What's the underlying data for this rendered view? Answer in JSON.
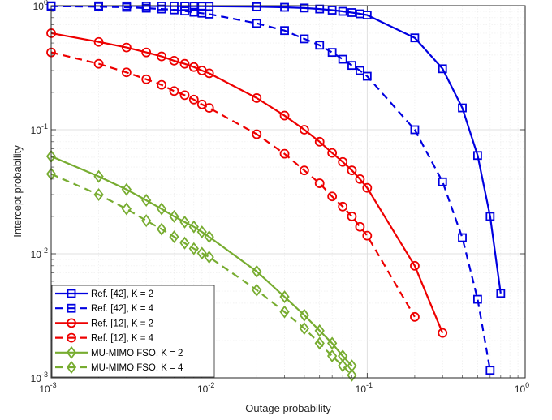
{
  "chart_data": {
    "type": "line",
    "xlabel": "Outage probability",
    "ylabel": "Intercept probability",
    "xscale": "log",
    "yscale": "log",
    "xlim": [
      0.001,
      1
    ],
    "ylim": [
      0.001,
      1
    ],
    "x_tick_labels": [
      {
        "base": "10",
        "exp": "-3"
      },
      {
        "base": "10",
        "exp": "-2"
      },
      {
        "base": "10",
        "exp": "-1"
      },
      {
        "base": "10",
        "exp": "0"
      }
    ],
    "y_tick_labels": [
      {
        "base": "10",
        "exp": "-3"
      },
      {
        "base": "10",
        "exp": "-2"
      },
      {
        "base": "10",
        "exp": "-1"
      },
      {
        "base": "10",
        "exp": "0"
      }
    ],
    "grid": true,
    "legend_position": "bottom-left",
    "series": [
      {
        "name": "Ref. [42], K = 2",
        "color": "#0000e0",
        "dash": "solid",
        "marker": "square",
        "x": [
          0.001,
          0.002,
          0.003,
          0.004,
          0.005,
          0.006,
          0.007,
          0.008,
          0.009,
          0.01,
          0.02,
          0.03,
          0.04,
          0.05,
          0.06,
          0.07,
          0.08,
          0.09,
          0.1,
          0.2,
          0.3,
          0.4,
          0.5,
          0.6,
          0.7
        ],
        "y": [
          0.998,
          0.996,
          0.995,
          0.994,
          0.993,
          0.992,
          0.991,
          0.99,
          0.989,
          0.988,
          0.98,
          0.97,
          0.958,
          0.94,
          0.92,
          0.9,
          0.88,
          0.86,
          0.84,
          0.55,
          0.31,
          0.15,
          0.062,
          0.02,
          0.0048
        ]
      },
      {
        "name": "Ref. [42], K = 4",
        "color": "#0000e0",
        "dash": "dashed",
        "marker": "square",
        "x": [
          0.001,
          0.002,
          0.003,
          0.004,
          0.005,
          0.006,
          0.007,
          0.008,
          0.009,
          0.01,
          0.02,
          0.03,
          0.04,
          0.05,
          0.06,
          0.07,
          0.08,
          0.09,
          0.1,
          0.2,
          0.3,
          0.4,
          0.5,
          0.6
        ],
        "y": [
          0.99,
          0.98,
          0.97,
          0.955,
          0.94,
          0.925,
          0.905,
          0.885,
          0.87,
          0.855,
          0.72,
          0.63,
          0.54,
          0.48,
          0.42,
          0.37,
          0.33,
          0.3,
          0.27,
          0.1,
          0.038,
          0.0135,
          0.0043,
          0.00115
        ]
      },
      {
        "name": "Ref. [12], K = 2",
        "color": "#ee0000",
        "dash": "solid",
        "marker": "circle",
        "x": [
          0.001,
          0.002,
          0.003,
          0.004,
          0.005,
          0.006,
          0.007,
          0.008,
          0.009,
          0.01,
          0.02,
          0.03,
          0.04,
          0.05,
          0.06,
          0.07,
          0.08,
          0.09,
          0.1,
          0.2,
          0.3
        ],
        "y": [
          0.6,
          0.51,
          0.46,
          0.42,
          0.39,
          0.36,
          0.34,
          0.32,
          0.3,
          0.285,
          0.18,
          0.13,
          0.1,
          0.08,
          0.065,
          0.055,
          0.047,
          0.04,
          0.034,
          0.008,
          0.0023
        ]
      },
      {
        "name": "Ref. [12], K = 4",
        "color": "#ee0000",
        "dash": "dashed",
        "marker": "circle",
        "x": [
          0.001,
          0.002,
          0.003,
          0.004,
          0.005,
          0.006,
          0.007,
          0.008,
          0.009,
          0.01,
          0.02,
          0.03,
          0.04,
          0.05,
          0.06,
          0.07,
          0.08,
          0.09,
          0.1,
          0.2
        ],
        "y": [
          0.42,
          0.34,
          0.29,
          0.255,
          0.23,
          0.205,
          0.19,
          0.175,
          0.16,
          0.15,
          0.092,
          0.064,
          0.047,
          0.037,
          0.029,
          0.024,
          0.02,
          0.0165,
          0.014,
          0.0031
        ]
      },
      {
        "name": "MU-MIMO FSO, K = 2",
        "color": "#77ac30",
        "dash": "solid",
        "marker": "diamond",
        "x": [
          0.001,
          0.002,
          0.003,
          0.004,
          0.005,
          0.006,
          0.007,
          0.008,
          0.009,
          0.01,
          0.02,
          0.03,
          0.04,
          0.05,
          0.06,
          0.07,
          0.08
        ],
        "y": [
          0.061,
          0.042,
          0.033,
          0.027,
          0.023,
          0.02,
          0.018,
          0.0165,
          0.015,
          0.0137,
          0.0072,
          0.0045,
          0.0032,
          0.0024,
          0.0019,
          0.0015,
          0.00125
        ]
      },
      {
        "name": "MU-MIMO FSO, K = 4",
        "color": "#77ac30",
        "dash": "dashed",
        "marker": "diamond",
        "x": [
          0.001,
          0.002,
          0.003,
          0.004,
          0.005,
          0.006,
          0.007,
          0.008,
          0.009,
          0.01,
          0.02,
          0.03,
          0.04,
          0.05,
          0.06,
          0.07,
          0.08
        ],
        "y": [
          0.044,
          0.03,
          0.023,
          0.0185,
          0.0158,
          0.0137,
          0.0122,
          0.011,
          0.0101,
          0.0094,
          0.0051,
          0.0034,
          0.0025,
          0.0019,
          0.0015,
          0.00125,
          0.00105
        ]
      }
    ]
  }
}
